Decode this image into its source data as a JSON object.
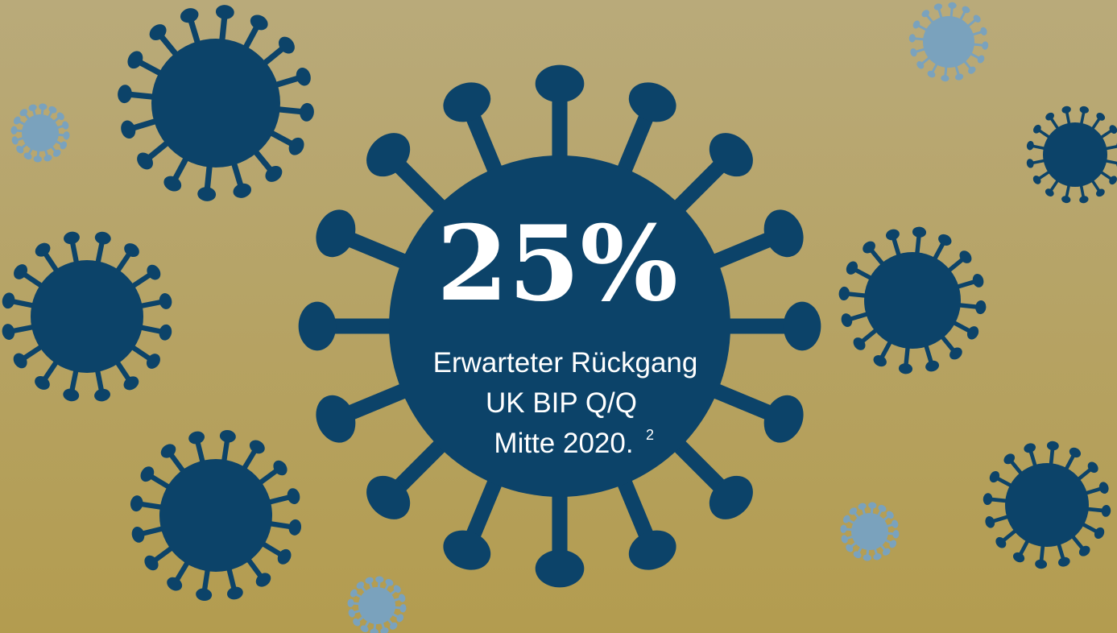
{
  "headline": {
    "value": "25%",
    "lines": [
      "Erwarteter Rückgang",
      "UK BIP Q/Q",
      "Mitte 2020."
    ],
    "footnote": "2"
  }
}
